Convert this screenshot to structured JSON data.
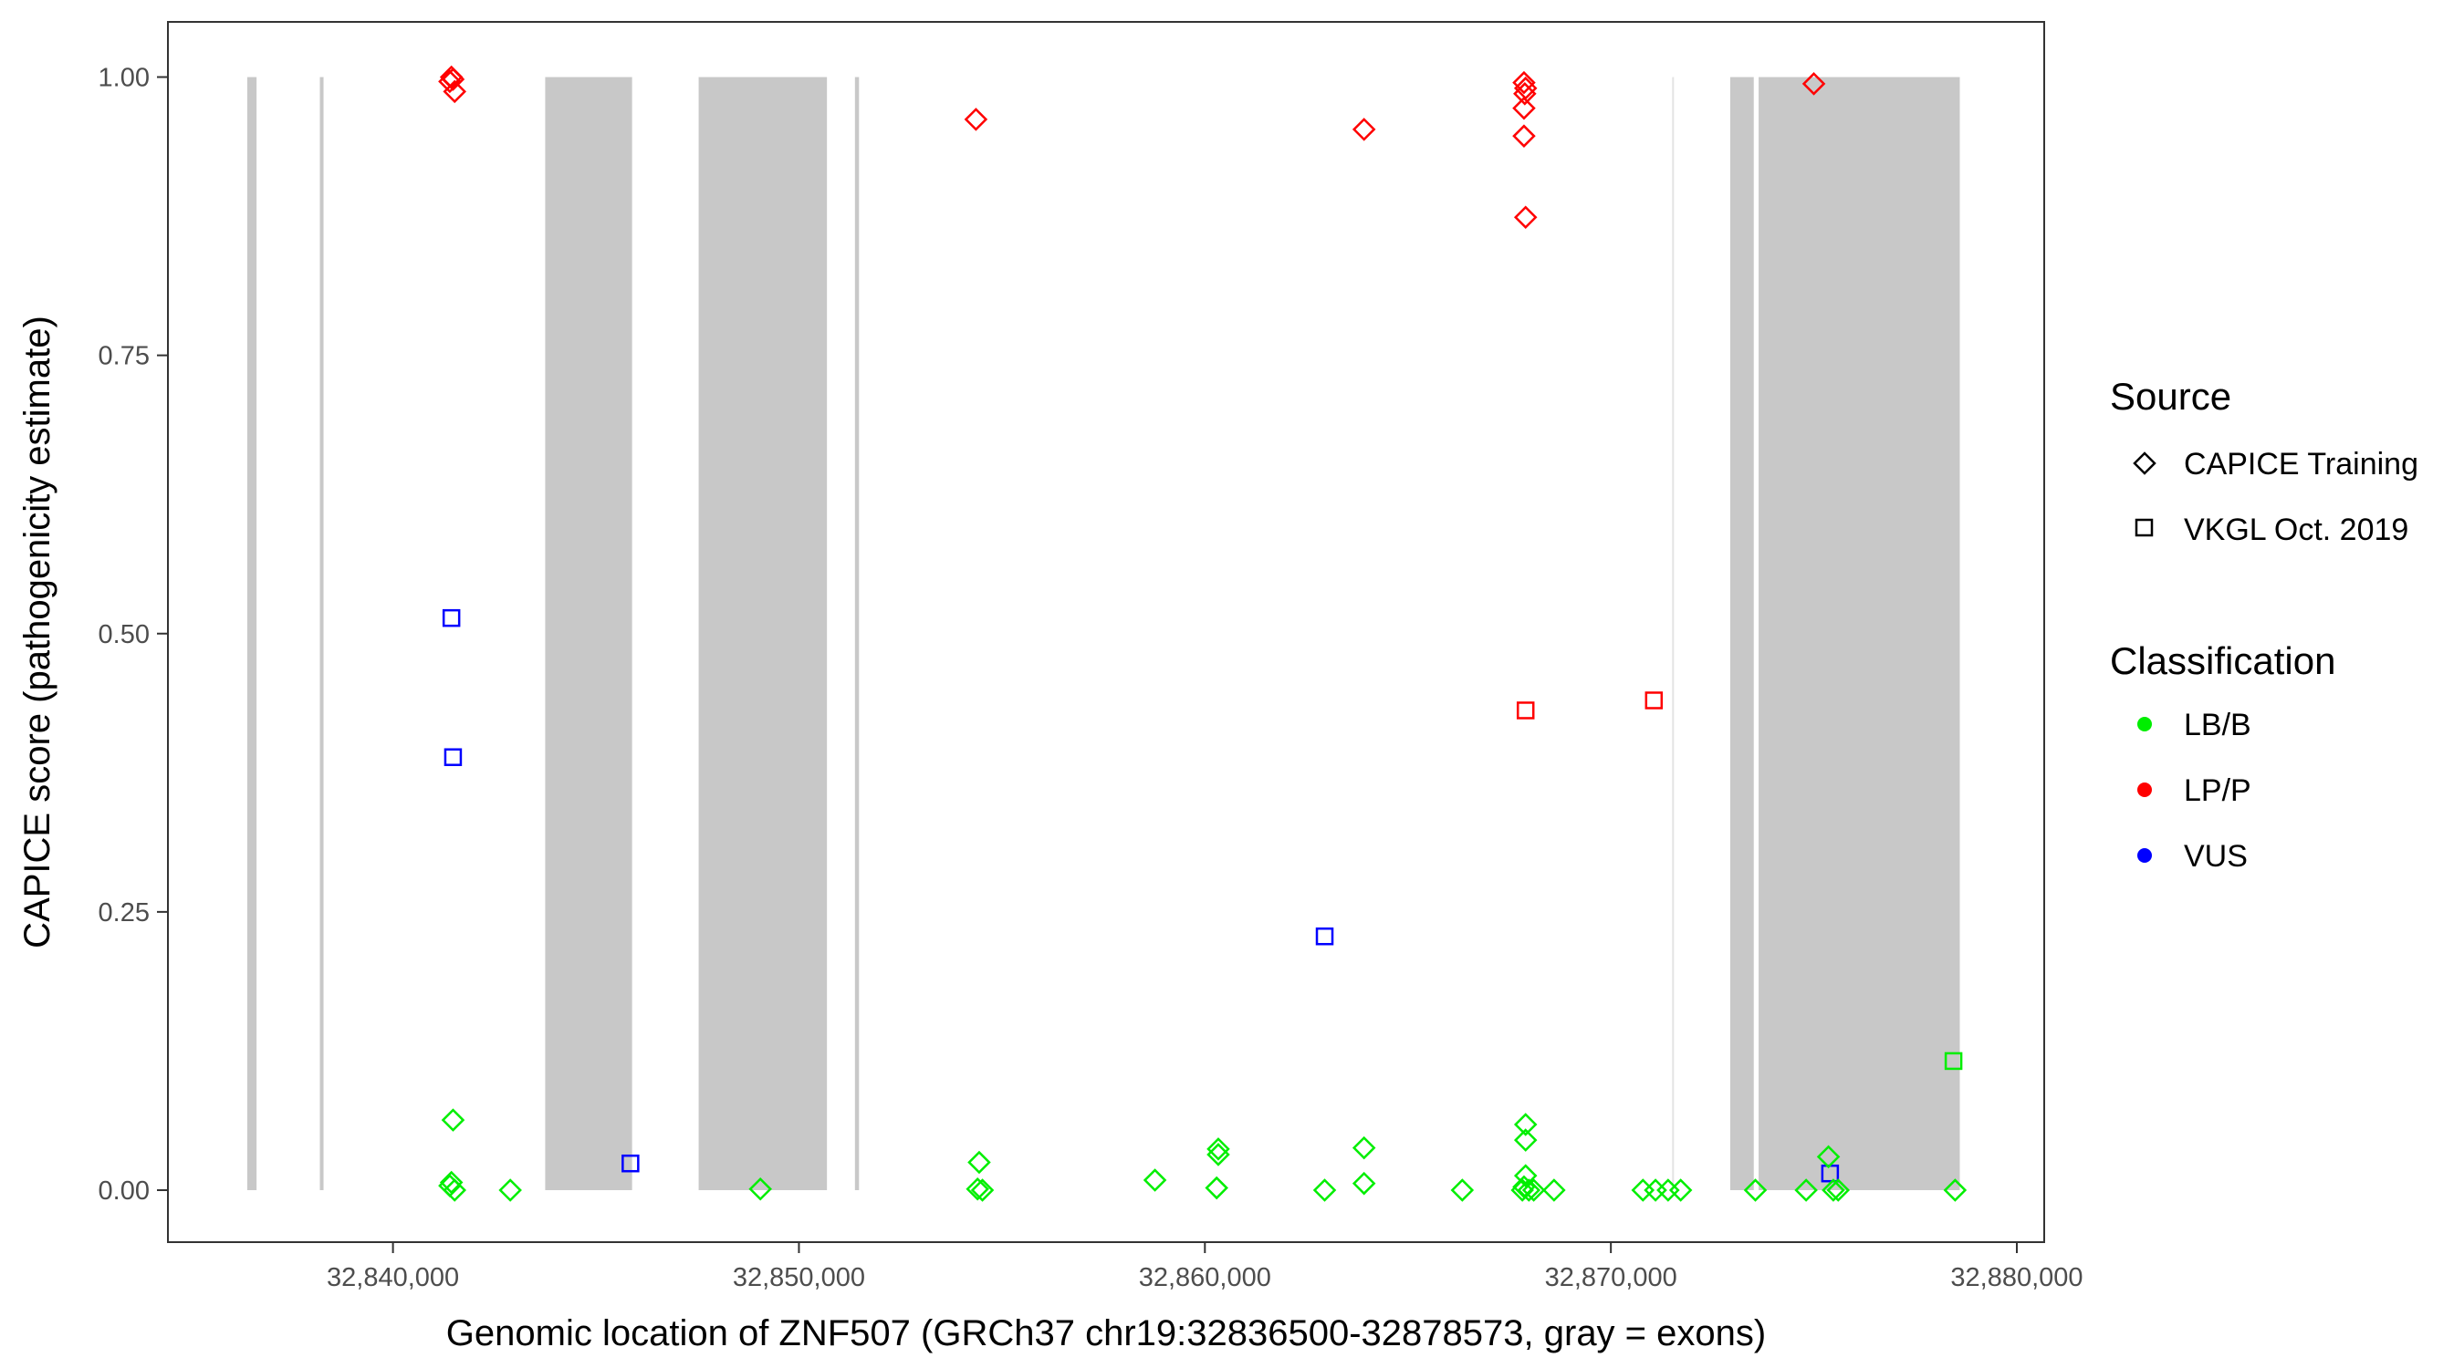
{
  "chart_data": {
    "type": "scatter",
    "xlabel": "Genomic location of ZNF507 (GRCh37 chr19:32836500-32878573, gray = exons)",
    "ylabel": "CAPICE score (pathogenicity estimate)",
    "xlim": [
      32834500,
      32880700
    ],
    "ylim": [
      -0.047,
      1.05
    ],
    "xticks": [
      32840000,
      32850000,
      32860000,
      32870000,
      32880000
    ],
    "xtick_labels": [
      "32,840,000",
      "32,850,000",
      "32,860,000",
      "32,870,000",
      "32,880,000"
    ],
    "yticks": [
      0,
      0.25,
      0.5,
      0.75,
      1.0
    ],
    "ytick_labels": [
      "0.00",
      "0.25",
      "0.50",
      "0.75",
      "1.00"
    ],
    "grid": false,
    "exons": [
      [
        32836410,
        32836640
      ],
      [
        32838200,
        32838290
      ],
      [
        32843750,
        32845890
      ],
      [
        32847530,
        32850690
      ],
      [
        32851380,
        32851480
      ],
      [
        32871510,
        32871550
      ],
      [
        32872940,
        32873520
      ],
      [
        32873640,
        32878595
      ]
    ],
    "legend": {
      "placement": "right",
      "source_title": "Source",
      "source_items": [
        {
          "label": "CAPICE Training",
          "shape": "diamond"
        },
        {
          "label": "VKGL Oct. 2019",
          "shape": "square"
        }
      ],
      "class_title": "Classification",
      "class_items": [
        {
          "label": "LB/B",
          "color": "#00ee00"
        },
        {
          "label": "LP/P",
          "color": "#ff0000"
        },
        {
          "label": "VUS",
          "color": "#0000ff"
        }
      ]
    },
    "colors": {
      "LB/B": "#00ee00",
      "LP/P": "#ff0000",
      "VUS": "#0000ff",
      "exon": "#c8c8c8"
    },
    "points": [
      {
        "x": 32841440,
        "y": 1.0,
        "source": "CAPICE Training",
        "class": "LP/P"
      },
      {
        "x": 32841480,
        "y": 0.998,
        "source": "CAPICE Training",
        "class": "LP/P"
      },
      {
        "x": 32841400,
        "y": 0.996,
        "source": "CAPICE Training",
        "class": "LP/P"
      },
      {
        "x": 32841520,
        "y": 0.987,
        "source": "CAPICE Training",
        "class": "LP/P"
      },
      {
        "x": 32854360,
        "y": 0.962,
        "source": "CAPICE Training",
        "class": "LP/P"
      },
      {
        "x": 32863920,
        "y": 0.953,
        "source": "CAPICE Training",
        "class": "LP/P"
      },
      {
        "x": 32867860,
        "y": 0.995,
        "source": "CAPICE Training",
        "class": "LP/P"
      },
      {
        "x": 32867900,
        "y": 0.99,
        "source": "CAPICE Training",
        "class": "LP/P"
      },
      {
        "x": 32867880,
        "y": 0.985,
        "source": "CAPICE Training",
        "class": "LP/P"
      },
      {
        "x": 32867860,
        "y": 0.972,
        "source": "CAPICE Training",
        "class": "LP/P"
      },
      {
        "x": 32867860,
        "y": 0.947,
        "source": "CAPICE Training",
        "class": "LP/P"
      },
      {
        "x": 32867900,
        "y": 0.874,
        "source": "CAPICE Training",
        "class": "LP/P"
      },
      {
        "x": 32875000,
        "y": 0.994,
        "source": "CAPICE Training",
        "class": "LP/P"
      },
      {
        "x": 32867900,
        "y": 0.431,
        "source": "VKGL Oct. 2019",
        "class": "LP/P"
      },
      {
        "x": 32871060,
        "y": 0.44,
        "source": "VKGL Oct. 2019",
        "class": "LP/P"
      },
      {
        "x": 32841440,
        "y": 0.514,
        "source": "VKGL Oct. 2019",
        "class": "VUS"
      },
      {
        "x": 32841480,
        "y": 0.389,
        "source": "VKGL Oct. 2019",
        "class": "VUS"
      },
      {
        "x": 32845850,
        "y": 0.024,
        "source": "VKGL Oct. 2019",
        "class": "VUS"
      },
      {
        "x": 32862950,
        "y": 0.228,
        "source": "VKGL Oct. 2019",
        "class": "VUS"
      },
      {
        "x": 32875400,
        "y": 0.015,
        "source": "VKGL Oct. 2019",
        "class": "VUS"
      },
      {
        "x": 32878440,
        "y": 0.116,
        "source": "VKGL Oct. 2019",
        "class": "LB/B"
      },
      {
        "x": 32841480,
        "y": 0.063,
        "source": "CAPICE Training",
        "class": "LB/B"
      },
      {
        "x": 32841440,
        "y": 0.007,
        "source": "CAPICE Training",
        "class": "LB/B"
      },
      {
        "x": 32841400,
        "y": 0.004,
        "source": "CAPICE Training",
        "class": "LB/B"
      },
      {
        "x": 32841520,
        "y": 0.0,
        "source": "CAPICE Training",
        "class": "LB/B"
      },
      {
        "x": 32842890,
        "y": 0.0,
        "source": "CAPICE Training",
        "class": "LB/B"
      },
      {
        "x": 32849050,
        "y": 0.001,
        "source": "CAPICE Training",
        "class": "LB/B"
      },
      {
        "x": 32854440,
        "y": 0.025,
        "source": "CAPICE Training",
        "class": "LB/B"
      },
      {
        "x": 32854400,
        "y": 0.001,
        "source": "CAPICE Training",
        "class": "LB/B"
      },
      {
        "x": 32854520,
        "y": 0.0,
        "source": "CAPICE Training",
        "class": "LB/B"
      },
      {
        "x": 32858770,
        "y": 0.009,
        "source": "CAPICE Training",
        "class": "LB/B"
      },
      {
        "x": 32860330,
        "y": 0.037,
        "source": "CAPICE Training",
        "class": "LB/B"
      },
      {
        "x": 32860330,
        "y": 0.032,
        "source": "CAPICE Training",
        "class": "LB/B"
      },
      {
        "x": 32860290,
        "y": 0.002,
        "source": "CAPICE Training",
        "class": "LB/B"
      },
      {
        "x": 32862950,
        "y": 0.0,
        "source": "CAPICE Training",
        "class": "LB/B"
      },
      {
        "x": 32863920,
        "y": 0.038,
        "source": "CAPICE Training",
        "class": "LB/B"
      },
      {
        "x": 32863920,
        "y": 0.006,
        "source": "CAPICE Training",
        "class": "LB/B"
      },
      {
        "x": 32866340,
        "y": 0.0,
        "source": "CAPICE Training",
        "class": "LB/B"
      },
      {
        "x": 32867900,
        "y": 0.059,
        "source": "CAPICE Training",
        "class": "LB/B"
      },
      {
        "x": 32867900,
        "y": 0.045,
        "source": "CAPICE Training",
        "class": "LB/B"
      },
      {
        "x": 32867900,
        "y": 0.013,
        "source": "CAPICE Training",
        "class": "LB/B"
      },
      {
        "x": 32867860,
        "y": 0.003,
        "source": "CAPICE Training",
        "class": "LB/B"
      },
      {
        "x": 32867820,
        "y": 0.0,
        "source": "CAPICE Training",
        "class": "LB/B"
      },
      {
        "x": 32867980,
        "y": 0.0,
        "source": "CAPICE Training",
        "class": "LB/B"
      },
      {
        "x": 32868100,
        "y": 0.0,
        "source": "CAPICE Training",
        "class": "LB/B"
      },
      {
        "x": 32868600,
        "y": 0.0,
        "source": "CAPICE Training",
        "class": "LB/B"
      },
      {
        "x": 32870790,
        "y": 0.0,
        "source": "CAPICE Training",
        "class": "LB/B"
      },
      {
        "x": 32871100,
        "y": 0.0,
        "source": "CAPICE Training",
        "class": "LB/B"
      },
      {
        "x": 32871410,
        "y": 0.0,
        "source": "CAPICE Training",
        "class": "LB/B"
      },
      {
        "x": 32871720,
        "y": 0.0,
        "source": "CAPICE Training",
        "class": "LB/B"
      },
      {
        "x": 32873560,
        "y": 0.0,
        "source": "CAPICE Training",
        "class": "LB/B"
      },
      {
        "x": 32874810,
        "y": 0.0,
        "source": "CAPICE Training",
        "class": "LB/B"
      },
      {
        "x": 32875360,
        "y": 0.03,
        "source": "CAPICE Training",
        "class": "LB/B"
      },
      {
        "x": 32875480,
        "y": 0.0,
        "source": "CAPICE Training",
        "class": "LB/B"
      },
      {
        "x": 32875600,
        "y": 0.0,
        "source": "CAPICE Training",
        "class": "LB/B"
      },
      {
        "x": 32878480,
        "y": 0.0,
        "source": "CAPICE Training",
        "class": "LB/B"
      }
    ]
  }
}
